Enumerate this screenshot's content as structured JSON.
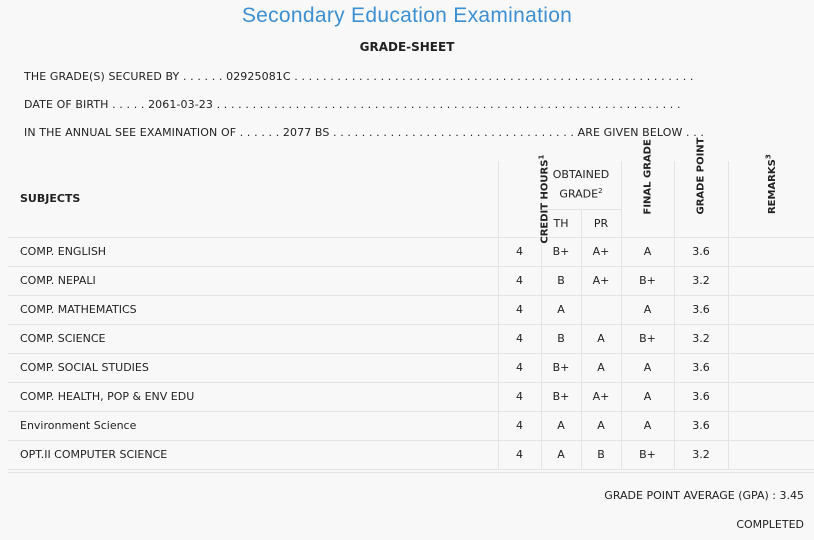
{
  "header": {
    "title": "Secondary Education Examination",
    "subtitle": "GRADE-SHEET"
  },
  "info": {
    "line1": "THE GRADE(S) SECURED BY . . . . . . 02925081C . . . . . . . . . . . . . . . . . . . . . . . . . . . . . . . . . . . . . . . . . . . . . . . . . . . . . . . .",
    "line2": "DATE OF BIRTH . . . . . 2061-03-23 . . . . . . . . . . . . . . . . . . . . . . . . . . . . . . . . . . . . . . . . . . . . . . . . . . . . . . . . . . . . . . . . .",
    "line3": "IN THE ANNUAL SEE EXAMINATION OF . . . . . . 2077 BS . . . . . . . . . . . . . . . . . . . . . . . . . . . . . . . . . . ARE GIVEN BELOW . . ."
  },
  "table": {
    "headers": {
      "subjects": "SUBJECTS",
      "credit_hours": "CREDIT HOURS",
      "credit_sup": "1",
      "obtained_grade_line1": "OBTAINED",
      "obtained_grade_line2": "GRADE",
      "obtained_sup": "2",
      "th": "TH",
      "pr": "PR",
      "final_grade": "FINAL GRADE",
      "grade_point": "GRADE POINT",
      "remarks": "REMARKS",
      "remarks_sup": "3"
    },
    "rows": [
      {
        "subject": "COMP. ENGLISH",
        "credit": "4",
        "th": "B+",
        "pr": "A+",
        "final": "A",
        "gp": "3.6",
        "remarks": ""
      },
      {
        "subject": "COMP. NEPALI",
        "credit": "4",
        "th": "B",
        "pr": "A+",
        "final": "B+",
        "gp": "3.2",
        "remarks": ""
      },
      {
        "subject": "COMP. MATHEMATICS",
        "credit": "4",
        "th": "A",
        "pr": "",
        "final": "A",
        "gp": "3.6",
        "remarks": ""
      },
      {
        "subject": "COMP. SCIENCE",
        "credit": "4",
        "th": "B",
        "pr": "A",
        "final": "B+",
        "gp": "3.2",
        "remarks": ""
      },
      {
        "subject": "COMP. SOCIAL STUDIES",
        "credit": "4",
        "th": "B+",
        "pr": "A",
        "final": "A",
        "gp": "3.6",
        "remarks": ""
      },
      {
        "subject": "COMP. HEALTH, POP & ENV EDU",
        "credit": "4",
        "th": "B+",
        "pr": "A+",
        "final": "A",
        "gp": "3.6",
        "remarks": ""
      },
      {
        "subject": "Environment Science",
        "credit": "4",
        "th": "A",
        "pr": "A",
        "final": "A",
        "gp": "3.6",
        "remarks": ""
      },
      {
        "subject": "OPT.II COMPUTER SCIENCE",
        "credit": "4",
        "th": "A",
        "pr": "B",
        "final": "B+",
        "gp": "3.2",
        "remarks": ""
      }
    ]
  },
  "footer": {
    "gpa": "GRADE POINT AVERAGE (GPA) : 3.45",
    "status": "COMPLETED"
  },
  "colors": {
    "title": "#3d8fd1",
    "background": "#f8f8f8",
    "border": "#e4e4e4"
  }
}
